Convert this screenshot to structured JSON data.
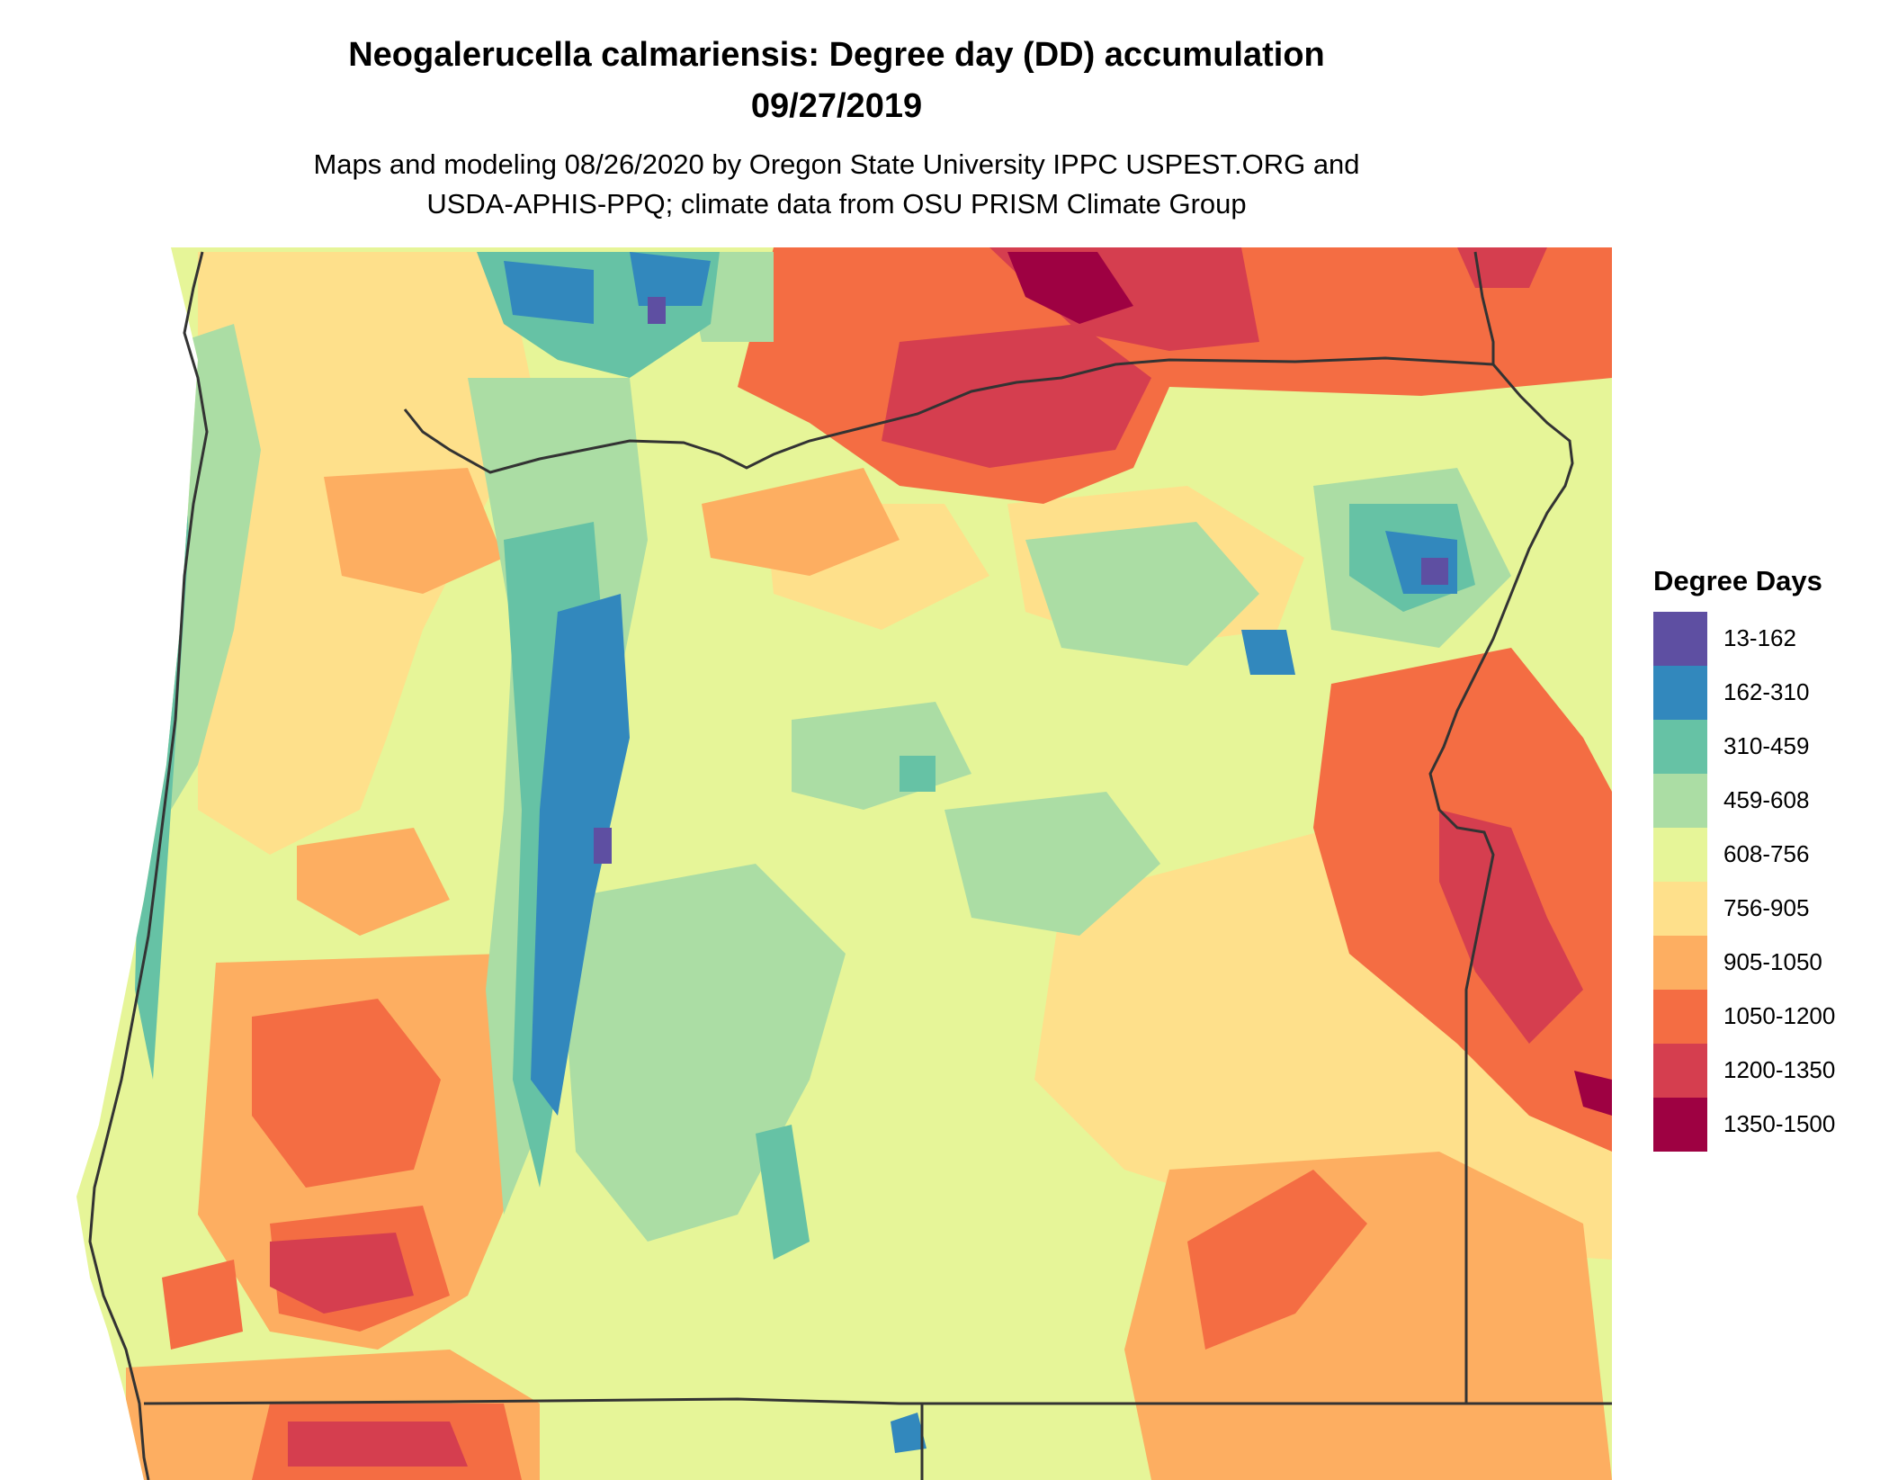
{
  "title_line1": "Neogalerucella calmariensis: Degree day (DD) accumulation",
  "title_line2": "09/27/2019",
  "subtitle_line1": "Maps and modeling 08/26/2020 by Oregon State University IPPC USPEST.ORG and",
  "subtitle_line2": "USDA-APHIS-PPQ; climate data from OSU PRISM Climate Group",
  "legend": {
    "title": "Degree Days",
    "items": [
      {
        "label": "13-162",
        "color": "#5E4FA2"
      },
      {
        "label": "162-310",
        "color": "#3288BD"
      },
      {
        "label": "310-459",
        "color": "#66C2A5"
      },
      {
        "label": "459-608",
        "color": "#ABDDA4"
      },
      {
        "label": "608-756",
        "color": "#E6F598"
      },
      {
        "label": "756-905",
        "color": "#FEE08B"
      },
      {
        "label": "905-1050",
        "color": "#FDAE61"
      },
      {
        "label": "1050-1200",
        "color": "#F46D43"
      },
      {
        "label": "1200-1350",
        "color": "#D53E4F"
      },
      {
        "label": "1350-1500",
        "color": "#9E0142"
      }
    ]
  }
}
